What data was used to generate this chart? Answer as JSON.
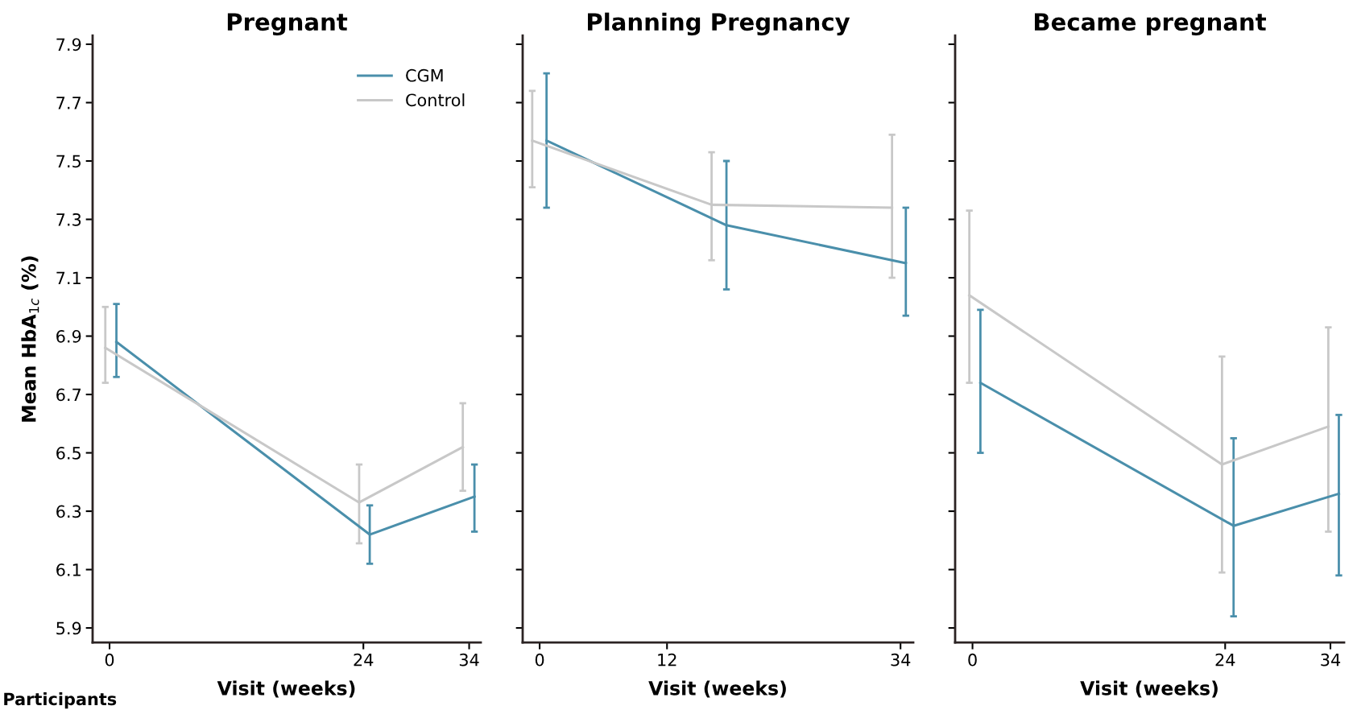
{
  "chart_data": [
    {
      "type": "line",
      "title": "Pregnant",
      "xlabel": "Visit (weeks)",
      "ylabel": "Mean HbA$_{1c}$ (%)",
      "xlim": [
        -1.6,
        35.1
      ],
      "xticks": [
        0,
        24,
        34
      ],
      "ylim": [
        5.85,
        7.93
      ],
      "yticks": [
        5.9,
        6.1,
        6.3,
        6.5,
        6.7,
        6.9,
        7.1,
        7.3,
        7.5,
        7.7,
        7.9
      ],
      "grid": false,
      "legend": "top right",
      "marker": "none",
      "line_style": "solid",
      "series": [
        {
          "name": "CGM",
          "color": "#4a8fab",
          "x": [
            0.65,
            24.6,
            34.5
          ],
          "values": [
            6.88,
            6.22,
            6.35
          ],
          "errors": [
            [
              6.76,
              7.01
            ],
            [
              6.12,
              6.32
            ],
            [
              6.23,
              6.46
            ]
          ]
        },
        {
          "name": "Control",
          "color": "#c8c8c8",
          "x": [
            -0.4,
            23.6,
            33.4
          ],
          "values": [
            6.86,
            6.33,
            6.52
          ],
          "errors": [
            [
              6.74,
              7.0
            ],
            [
              6.19,
              6.46
            ],
            [
              6.37,
              6.67
            ]
          ]
        }
      ],
      "annotations": [
        "Participants"
      ]
    },
    {
      "type": "line",
      "title": "Planning Pregnancy",
      "xlabel": "Visit (weeks)",
      "xlim": [
        -1.6,
        35.2
      ],
      "xticks": [
        0,
        12,
        34
      ],
      "ylim": [
        5.85,
        7.93
      ],
      "yticks": [
        5.9,
        6.1,
        6.3,
        6.5,
        6.7,
        6.9,
        7.1,
        7.3,
        7.5,
        7.7,
        7.9
      ],
      "tick_labels": "x",
      "grid": false,
      "legend": false,
      "marker": "none",
      "line_style": "solid",
      "series": [
        {
          "color": "#4a8fab",
          "x": [
            0.65,
            17.6,
            34.5
          ],
          "values": [
            7.57,
            7.28,
            7.15
          ],
          "errors": [
            [
              7.34,
              7.8
            ],
            [
              7.06,
              7.5
            ],
            [
              6.97,
              7.34
            ]
          ]
        },
        {
          "color": "#c8c8c8",
          "x": [
            -0.7,
            16.2,
            33.2
          ],
          "values": [
            7.57,
            7.35,
            7.34
          ],
          "errors": [
            [
              7.41,
              7.74
            ],
            [
              7.16,
              7.53
            ],
            [
              7.1,
              7.59
            ]
          ]
        }
      ]
    },
    {
      "type": "line",
      "title": "Became pregnant",
      "xlabel": "Visit (weeks)",
      "xlim": [
        -1.65,
        35.3
      ],
      "xticks": [
        0,
        24,
        34
      ],
      "ylim": [
        5.85,
        7.93
      ],
      "yticks": [
        5.9,
        6.1,
        6.3,
        6.5,
        6.7,
        6.9,
        7.1,
        7.3,
        7.5,
        7.7,
        7.9
      ],
      "tick_labels": "x",
      "grid": false,
      "legend": false,
      "marker": "none",
      "line_style": "solid",
      "series": [
        {
          "color": "#4a8fab",
          "x": [
            0.75,
            24.8,
            34.8
          ],
          "values": [
            6.74,
            6.25,
            6.36
          ],
          "errors": [
            [
              6.5,
              6.99
            ],
            [
              5.94,
              6.55
            ],
            [
              6.08,
              6.63
            ]
          ]
        },
        {
          "color": "#c8c8c8",
          "x": [
            -0.3,
            23.7,
            33.8
          ],
          "values": [
            7.04,
            6.46,
            6.59
          ],
          "errors": [
            [
              6.74,
              7.33
            ],
            [
              6.09,
              6.83
            ],
            [
              6.23,
              6.93
            ]
          ]
        }
      ]
    }
  ]
}
